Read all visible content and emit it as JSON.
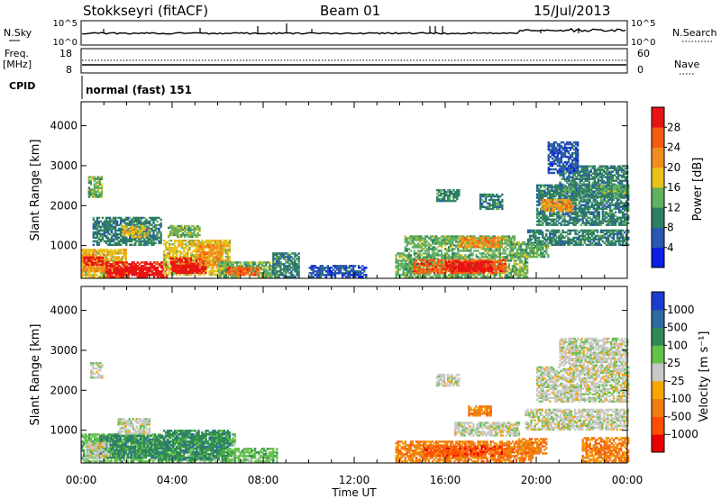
{
  "header": {
    "station": "Stokkseyri (fitACF)",
    "beam": "Beam 01",
    "date": "15/Jul/2013"
  },
  "strip_labels": {
    "nsky": "N.Sky",
    "nsearch": "N.Search",
    "freq": "Freq.",
    "freq_unit": "[MHz]",
    "nave": "Nave",
    "cpid": "CPID",
    "cpid_value": "normal (fast) 151",
    "nsky_ticks": [
      "10^5",
      "10^0"
    ],
    "nsearch_ticks": [
      "10^5",
      "10^0"
    ],
    "freq_ticks": [
      "18",
      "8"
    ],
    "nave_ticks": [
      "60",
      "0"
    ]
  },
  "colors": {
    "power_scale": [
      "#0a1ee6",
      "#2a58b0",
      "#2f7f62",
      "#62b060",
      "#e6c21a",
      "#f28c1e",
      "#f55a14",
      "#e81414"
    ],
    "velocity_scale": [
      "#1b3bd1",
      "#2c6aa0",
      "#2f8a55",
      "#63c24a",
      "#c8c8c4",
      "#f5a400",
      "#f07d12",
      "#ff4d00",
      "#e60000"
    ]
  },
  "chart_data": [
    {
      "type": "heatmap",
      "panel": "power",
      "xlabel": "",
      "ylabel": "Slant Range [km]",
      "x_range_hours": [
        0,
        24
      ],
      "ylim": [
        180,
        4600
      ],
      "x_ticks": [
        "00:00",
        "04:00",
        "08:00",
        "12:00",
        "16:00",
        "20:00",
        "00:00"
      ],
      "y_ticks": [
        1000,
        2000,
        3000,
        4000
      ],
      "colorbar": {
        "label": "Power [dB]",
        "ticks": [
          4,
          8,
          12,
          16,
          20,
          24,
          28
        ],
        "range": [
          0,
          32
        ]
      },
      "regions": [
        {
          "t0": 0.0,
          "t1": 2.0,
          "r0": 200,
          "r1": 900,
          "level": 4
        },
        {
          "t0": 1.0,
          "t1": 3.8,
          "r0": 200,
          "r1": 600,
          "level": 7
        },
        {
          "t0": 1.4,
          "t1": 3.4,
          "r0": 250,
          "r1": 450,
          "level": 8
        },
        {
          "t0": 0.0,
          "t1": 1.0,
          "r0": 350,
          "r1": 800,
          "level": 5
        },
        {
          "t0": 0.1,
          "t1": 0.9,
          "r0": 500,
          "r1": 700,
          "level": 7
        },
        {
          "t0": 3.6,
          "t1": 6.5,
          "r0": 250,
          "r1": 1150,
          "level": 4
        },
        {
          "t0": 3.9,
          "t1": 5.5,
          "r0": 300,
          "r1": 700,
          "level": 7
        },
        {
          "t0": 4.1,
          "t1": 5.1,
          "r0": 300,
          "r1": 500,
          "level": 8
        },
        {
          "t0": 5.2,
          "t1": 6.2,
          "r0": 500,
          "r1": 1000,
          "level": 5
        },
        {
          "t0": 6.0,
          "t1": 8.6,
          "r0": 200,
          "r1": 600,
          "level": 3
        },
        {
          "t0": 6.4,
          "t1": 7.8,
          "r0": 250,
          "r1": 450,
          "level": 6
        },
        {
          "t0": 8.4,
          "t1": 9.6,
          "r0": 200,
          "r1": 800,
          "level": 2
        },
        {
          "t0": 0.5,
          "t1": 3.5,
          "r0": 1000,
          "r1": 1700,
          "level": 2
        },
        {
          "t0": 1.8,
          "t1": 3.0,
          "r0": 1200,
          "r1": 1500,
          "level": 4
        },
        {
          "t0": 0.3,
          "t1": 0.9,
          "r0": 2200,
          "r1": 2700,
          "level": 3
        },
        {
          "t0": 3.8,
          "t1": 5.2,
          "r0": 1200,
          "r1": 1500,
          "level": 3
        },
        {
          "t0": 13.8,
          "t1": 19.6,
          "r0": 200,
          "r1": 800,
          "level": 3
        },
        {
          "t0": 14.6,
          "t1": 18.6,
          "r0": 300,
          "r1": 650,
          "level": 6
        },
        {
          "t0": 16.0,
          "t1": 18.0,
          "r0": 350,
          "r1": 600,
          "level": 7
        },
        {
          "t0": 16.6,
          "t1": 17.6,
          "r0": 400,
          "r1": 550,
          "level": 8
        },
        {
          "t0": 14.2,
          "t1": 19.0,
          "r0": 850,
          "r1": 1250,
          "level": 3
        },
        {
          "t0": 16.6,
          "t1": 18.5,
          "r0": 950,
          "r1": 1200,
          "level": 5
        },
        {
          "t0": 19.6,
          "t1": 24.0,
          "r0": 1000,
          "r1": 1400,
          "level": 2
        },
        {
          "t0": 18.8,
          "t1": 20.5,
          "r0": 700,
          "r1": 1100,
          "level": 3
        },
        {
          "t0": 20.0,
          "t1": 24.0,
          "r0": 1500,
          "r1": 2500,
          "level": 2
        },
        {
          "t0": 20.2,
          "t1": 21.6,
          "r0": 1850,
          "r1": 2150,
          "level": 5
        },
        {
          "t0": 21.0,
          "t1": 24.0,
          "r0": 2200,
          "r1": 3000,
          "level": 2
        },
        {
          "t0": 22.8,
          "t1": 24.0,
          "r0": 2300,
          "r1": 2500,
          "level": 3
        },
        {
          "t0": 20.5,
          "t1": 21.8,
          "r0": 2800,
          "r1": 3600,
          "level": 1
        },
        {
          "t0": 15.6,
          "t1": 16.6,
          "r0": 2100,
          "r1": 2400,
          "level": 2
        },
        {
          "t0": 17.5,
          "t1": 18.5,
          "r0": 1900,
          "r1": 2300,
          "level": 2
        },
        {
          "t0": 10.0,
          "t1": 12.5,
          "r0": 200,
          "r1": 500,
          "level": 1
        }
      ]
    },
    {
      "type": "heatmap",
      "panel": "velocity",
      "xlabel": "Time UT",
      "ylabel": "Slant Range [km]",
      "x_range_hours": [
        0,
        24
      ],
      "ylim": [
        180,
        4600
      ],
      "x_ticks": [
        "00:00",
        "04:00",
        "08:00",
        "12:00",
        "16:00",
        "20:00",
        "00:00"
      ],
      "y_ticks": [
        1000,
        2000,
        3000,
        4000
      ],
      "colorbar": {
        "label": "Velocity [m s⁻¹]",
        "ticks": [
          1000,
          500,
          100,
          25,
          -25,
          -100,
          -500,
          -1000
        ]
      },
      "regions": [
        {
          "t0": 0.0,
          "t1": 6.8,
          "r0": 200,
          "r1": 900,
          "level": 3
        },
        {
          "t0": 0.8,
          "t1": 3.6,
          "r0": 300,
          "r1": 850,
          "level": 2
        },
        {
          "t0": 3.6,
          "t1": 6.5,
          "r0": 250,
          "r1": 1000,
          "level": 2
        },
        {
          "t0": 0.2,
          "t1": 1.2,
          "r0": 300,
          "r1": 700,
          "level": 4
        },
        {
          "t0": 1.6,
          "t1": 3.0,
          "r0": 900,
          "r1": 1300,
          "level": 4
        },
        {
          "t0": 0.4,
          "t1": 0.9,
          "r0": 2300,
          "r1": 2700,
          "level": 4
        },
        {
          "t0": 6.4,
          "t1": 8.6,
          "r0": 200,
          "r1": 550,
          "level": 3
        },
        {
          "t0": 13.8,
          "t1": 19.8,
          "r0": 200,
          "r1": 700,
          "level": 6
        },
        {
          "t0": 15.0,
          "t1": 18.5,
          "r0": 350,
          "r1": 600,
          "level": 7
        },
        {
          "t0": 16.4,
          "t1": 19.2,
          "r0": 850,
          "r1": 1200,
          "level": 4
        },
        {
          "t0": 17.0,
          "t1": 18.0,
          "r0": 1350,
          "r1": 1600,
          "level": 6
        },
        {
          "t0": 19.5,
          "t1": 24.0,
          "r0": 1000,
          "r1": 1500,
          "level": 4
        },
        {
          "t0": 20.0,
          "t1": 24.0,
          "r0": 1700,
          "r1": 2600,
          "level": 4
        },
        {
          "t0": 21.0,
          "t1": 24.0,
          "r0": 2600,
          "r1": 3300,
          "level": 4
        },
        {
          "t0": 15.6,
          "t1": 16.6,
          "r0": 2100,
          "r1": 2400,
          "level": 4
        },
        {
          "t0": 19.2,
          "t1": 20.4,
          "r0": 400,
          "r1": 800,
          "level": 6
        },
        {
          "t0": 22.0,
          "t1": 24.0,
          "r0": 200,
          "r1": 800,
          "level": 6
        }
      ]
    }
  ]
}
